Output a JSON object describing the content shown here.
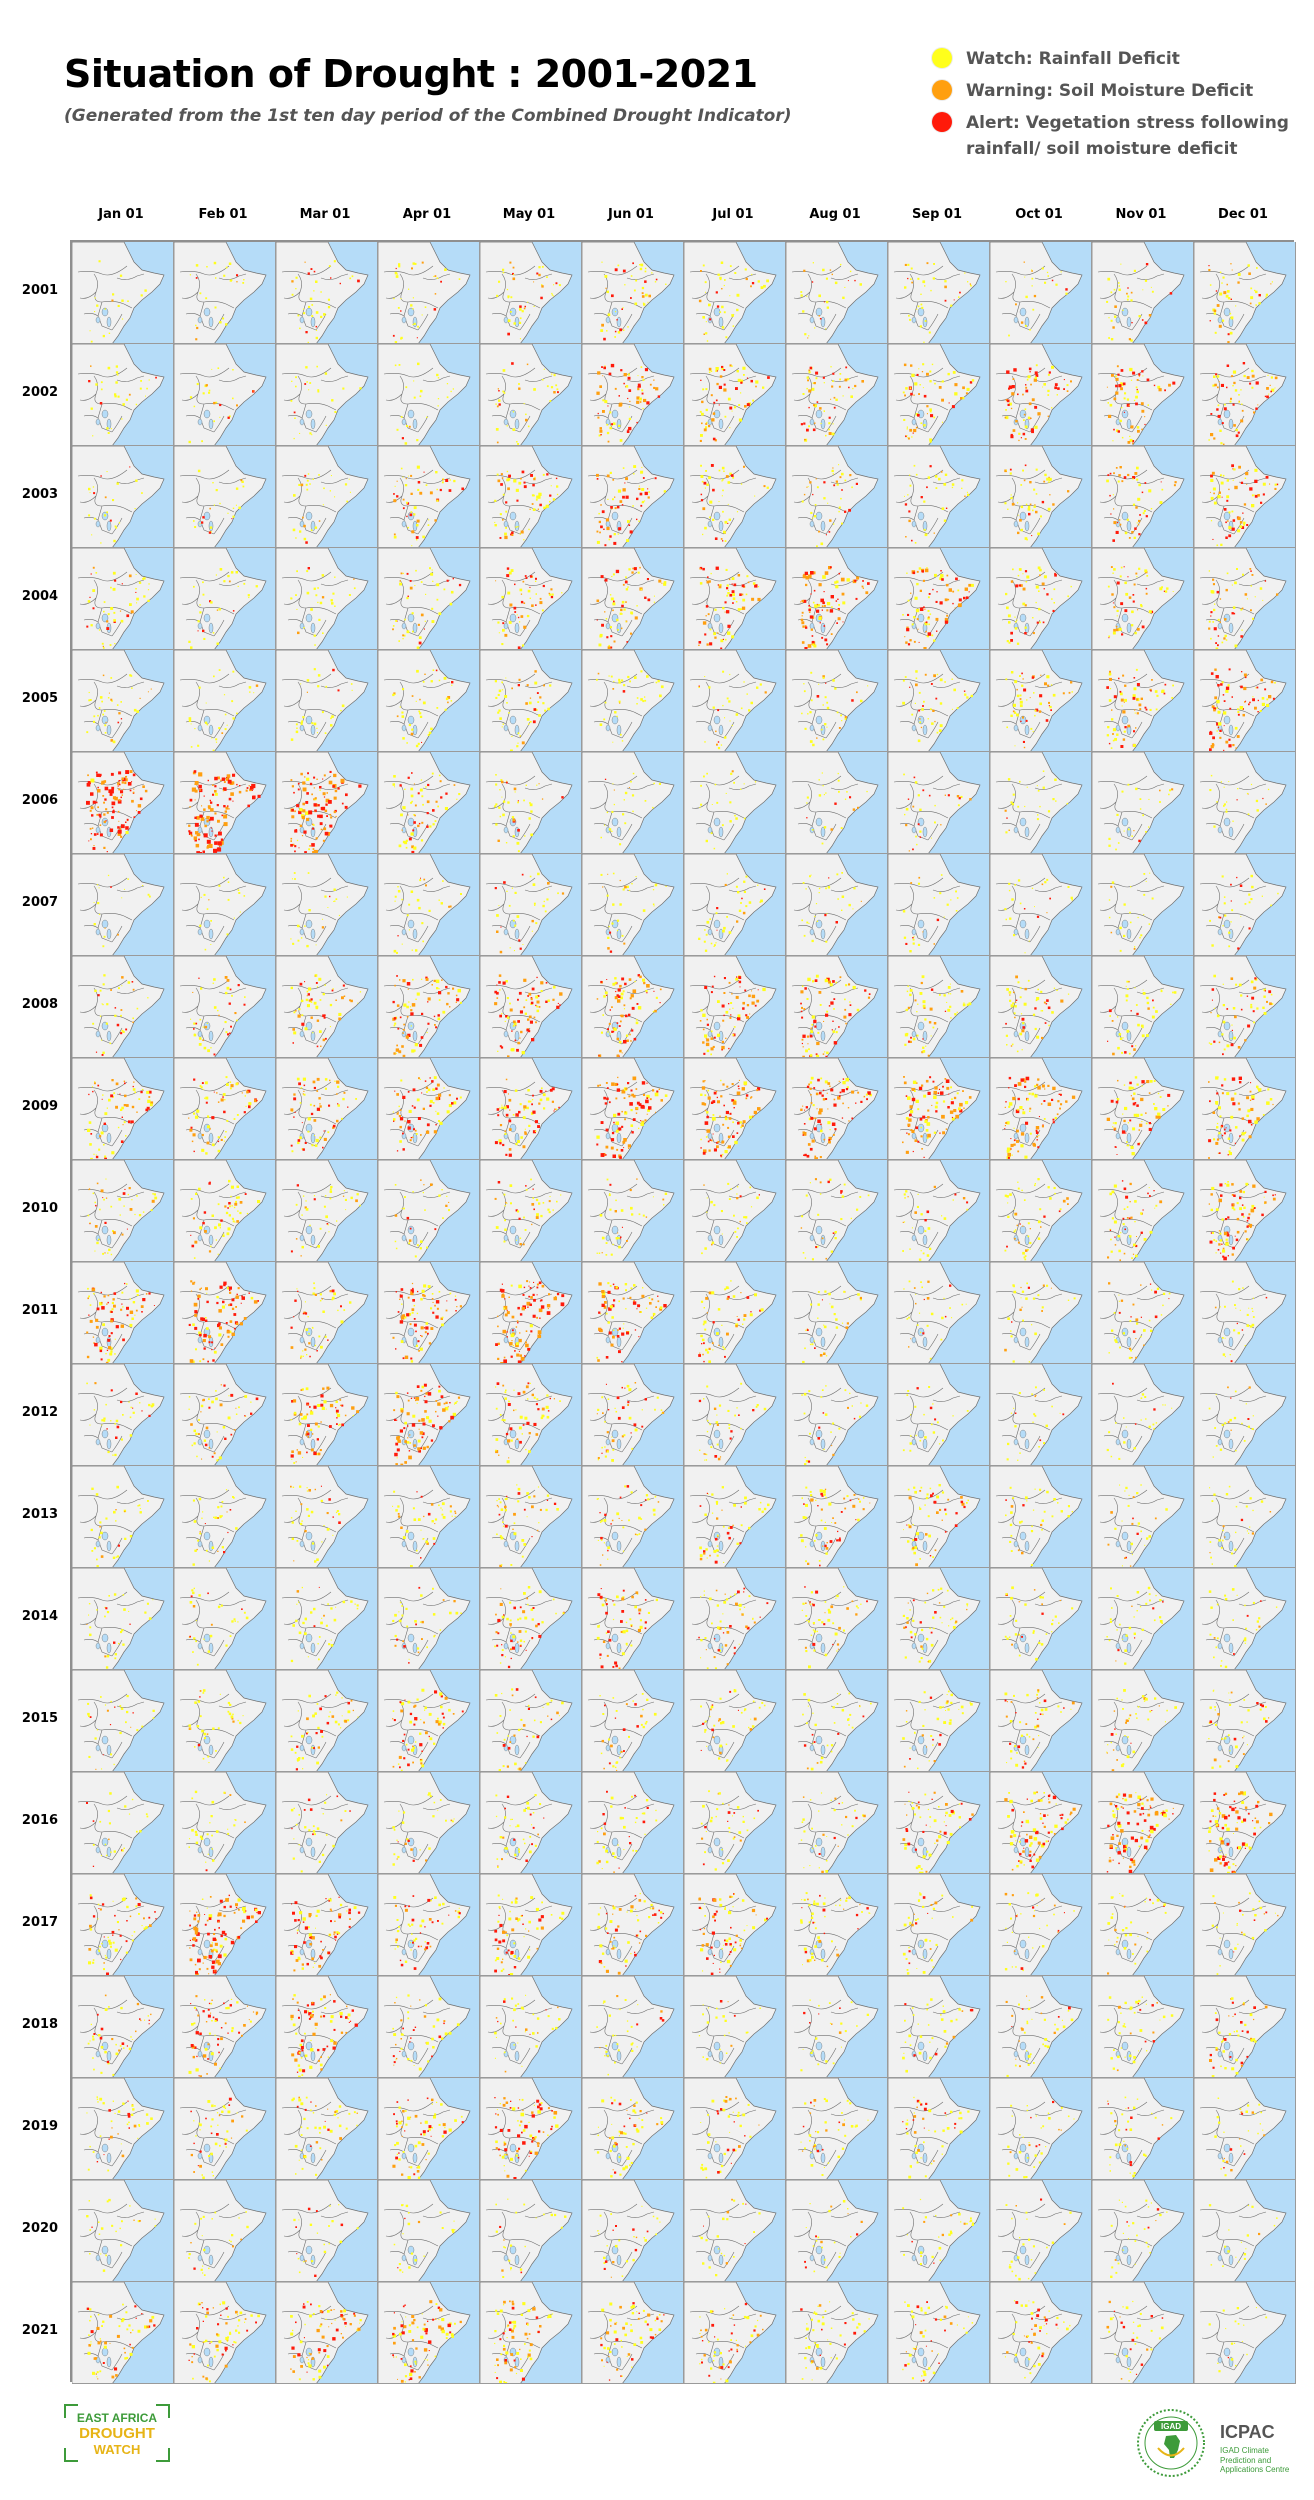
{
  "title": "Situation of Drought : 2001-2021",
  "subtitle": "(Generated from the 1st ten day period of the Combined Drought Indicator)",
  "legend": [
    {
      "label": "Watch: Rainfall Deficit",
      "color": "#ffff1c"
    },
    {
      "label": "Warning: Soil Moisture Deficit",
      "color": "#ff9f0f"
    },
    {
      "label": "Alert: Vegetation stress following rainfall/ soil moisture deficit",
      "color": "#ff1a0a"
    }
  ],
  "months": [
    "Jan 01",
    "Feb 01",
    "Mar 01",
    "Apr 01",
    "May 01",
    "Jun 01",
    "Jul 01",
    "Aug 01",
    "Sep 01",
    "Oct 01",
    "Nov 01",
    "Dec 01"
  ],
  "years": [
    "2001",
    "2002",
    "2003",
    "2004",
    "2005",
    "2006",
    "2007",
    "2008",
    "2009",
    "2010",
    "2011",
    "2012",
    "2013",
    "2014",
    "2015",
    "2016",
    "2017",
    "2018",
    "2019",
    "2020",
    "2021"
  ],
  "colors": {
    "sea": "#b5dcf8",
    "land": "#f1f1f1",
    "border": "#6f6f6f"
  },
  "drought_intensity": [
    [
      0.1,
      0.15,
      0.25,
      0.25,
      0.3,
      0.35,
      0.3,
      0.2,
      0.25,
      0.15,
      0.25,
      0.35
    ],
    [
      0.2,
      0.15,
      0.15,
      0.15,
      0.25,
      0.55,
      0.5,
      0.45,
      0.5,
      0.55,
      0.5,
      0.5
    ],
    [
      0.15,
      0.15,
      0.2,
      0.4,
      0.5,
      0.5,
      0.35,
      0.3,
      0.25,
      0.35,
      0.4,
      0.55
    ],
    [
      0.35,
      0.2,
      0.2,
      0.35,
      0.4,
      0.5,
      0.55,
      0.7,
      0.65,
      0.4,
      0.4,
      0.4
    ],
    [
      0.25,
      0.2,
      0.2,
      0.3,
      0.35,
      0.25,
      0.2,
      0.25,
      0.3,
      0.4,
      0.5,
      0.6
    ],
    [
      0.85,
      0.9,
      0.85,
      0.45,
      0.3,
      0.15,
      0.15,
      0.15,
      0.2,
      0.15,
      0.15,
      0.15
    ],
    [
      0.1,
      0.1,
      0.15,
      0.2,
      0.25,
      0.2,
      0.25,
      0.2,
      0.15,
      0.15,
      0.15,
      0.2
    ],
    [
      0.25,
      0.3,
      0.45,
      0.6,
      0.6,
      0.65,
      0.55,
      0.6,
      0.4,
      0.4,
      0.35,
      0.4
    ],
    [
      0.5,
      0.5,
      0.5,
      0.55,
      0.55,
      0.75,
      0.7,
      0.7,
      0.7,
      0.7,
      0.55,
      0.6
    ],
    [
      0.35,
      0.4,
      0.25,
      0.2,
      0.3,
      0.25,
      0.2,
      0.2,
      0.2,
      0.35,
      0.4,
      0.65
    ],
    [
      0.6,
      0.7,
      0.35,
      0.6,
      0.75,
      0.6,
      0.4,
      0.25,
      0.2,
      0.2,
      0.3,
      0.2
    ],
    [
      0.25,
      0.35,
      0.55,
      0.7,
      0.45,
      0.35,
      0.25,
      0.2,
      0.15,
      0.15,
      0.15,
      0.15
    ],
    [
      0.2,
      0.25,
      0.25,
      0.3,
      0.35,
      0.3,
      0.35,
      0.45,
      0.4,
      0.25,
      0.2,
      0.2
    ],
    [
      0.2,
      0.2,
      0.25,
      0.25,
      0.45,
      0.45,
      0.4,
      0.4,
      0.35,
      0.25,
      0.25,
      0.2
    ],
    [
      0.2,
      0.25,
      0.35,
      0.5,
      0.3,
      0.25,
      0.3,
      0.25,
      0.3,
      0.35,
      0.3,
      0.3
    ],
    [
      0.15,
      0.2,
      0.2,
      0.2,
      0.3,
      0.3,
      0.25,
      0.25,
      0.45,
      0.6,
      0.7,
      0.65
    ],
    [
      0.45,
      0.75,
      0.55,
      0.4,
      0.5,
      0.45,
      0.5,
      0.4,
      0.3,
      0.25,
      0.25,
      0.2
    ],
    [
      0.3,
      0.5,
      0.6,
      0.35,
      0.25,
      0.2,
      0.15,
      0.15,
      0.25,
      0.3,
      0.3,
      0.35
    ],
    [
      0.3,
      0.35,
      0.35,
      0.5,
      0.65,
      0.4,
      0.3,
      0.3,
      0.35,
      0.25,
      0.25,
      0.2
    ],
    [
      0.15,
      0.15,
      0.15,
      0.15,
      0.15,
      0.2,
      0.15,
      0.15,
      0.2,
      0.15,
      0.2,
      0.1
    ],
    [
      0.45,
      0.5,
      0.55,
      0.6,
      0.55,
      0.45,
      0.4,
      0.35,
      0.35,
      0.35,
      0.25,
      0.1
    ]
  ],
  "branding": {
    "left": [
      "EAST AFRICA",
      "DROUGHT",
      "WATCH"
    ],
    "right_seal": "IGAD",
    "right_name": "ICPAC",
    "right_sub": "IGAD Climate Prediction and Applications Centre"
  }
}
